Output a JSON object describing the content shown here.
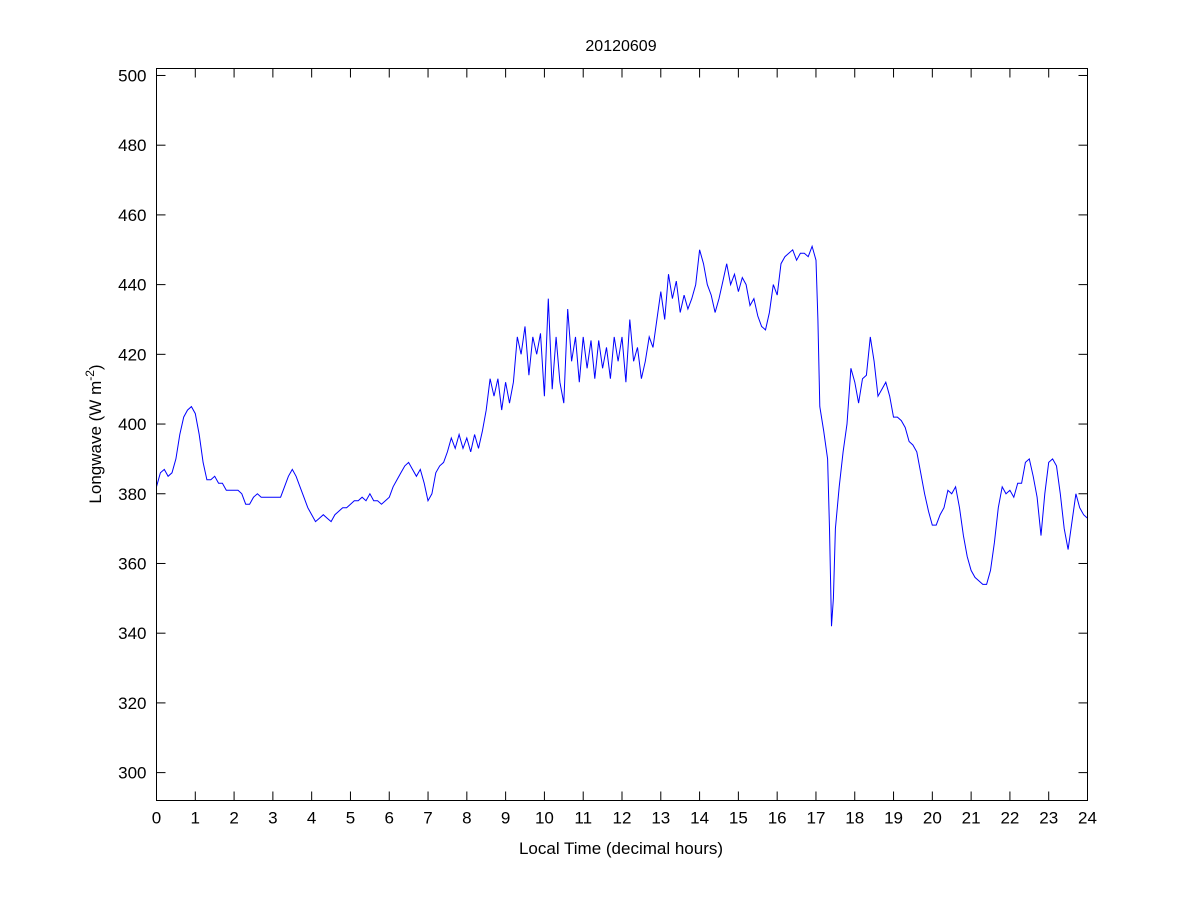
{
  "chart_data": {
    "type": "line",
    "title": "20120609",
    "xlabel": "Local Time (decimal hours)",
    "ylabel_main": "Longwave (W m",
    "ylabel_sup": "-2",
    "ylabel_end": ")",
    "xlim": [
      0,
      24
    ],
    "ylim": [
      292,
      502
    ],
    "xticks": [
      0,
      1,
      2,
      3,
      4,
      5,
      6,
      7,
      8,
      9,
      10,
      11,
      12,
      13,
      14,
      15,
      16,
      17,
      18,
      19,
      20,
      21,
      22,
      23,
      24
    ],
    "yticks": [
      300,
      320,
      340,
      360,
      380,
      400,
      420,
      440,
      460,
      480,
      500
    ],
    "grid": false,
    "line_color": "#0000ff",
    "series": [
      {
        "name": "Longwave",
        "x": [
          0,
          0.1,
          0.2,
          0.3,
          0.4,
          0.5,
          0.6,
          0.7,
          0.8,
          0.9,
          1,
          1.1,
          1.2,
          1.3,
          1.4,
          1.5,
          1.6,
          1.7,
          1.8,
          1.9,
          2,
          2.1,
          2.2,
          2.3,
          2.4,
          2.5,
          2.6,
          2.7,
          2.8,
          2.9,
          3,
          3.1,
          3.2,
          3.3,
          3.4,
          3.5,
          3.6,
          3.7,
          3.8,
          3.9,
          4,
          4.1,
          4.2,
          4.3,
          4.4,
          4.5,
          4.6,
          4.7,
          4.8,
          4.9,
          5,
          5.1,
          5.2,
          5.3,
          5.4,
          5.5,
          5.6,
          5.7,
          5.8,
          5.9,
          6,
          6.1,
          6.2,
          6.3,
          6.4,
          6.5,
          6.6,
          6.7,
          6.8,
          6.9,
          7,
          7.1,
          7.2,
          7.3,
          7.4,
          7.5,
          7.6,
          7.7,
          7.8,
          7.9,
          8,
          8.1,
          8.2,
          8.3,
          8.4,
          8.5,
          8.6,
          8.7,
          8.8,
          8.9,
          9,
          9.1,
          9.2,
          9.3,
          9.4,
          9.5,
          9.6,
          9.7,
          9.8,
          9.9,
          10,
          10.1,
          10.2,
          10.3,
          10.4,
          10.5,
          10.6,
          10.7,
          10.8,
          10.9,
          11,
          11.1,
          11.2,
          11.3,
          11.4,
          11.5,
          11.6,
          11.7,
          11.8,
          11.9,
          12,
          12.1,
          12.2,
          12.3,
          12.4,
          12.5,
          12.6,
          12.7,
          12.8,
          12.9,
          13,
          13.1,
          13.2,
          13.3,
          13.4,
          13.5,
          13.6,
          13.7,
          13.8,
          13.9,
          14,
          14.1,
          14.2,
          14.3,
          14.4,
          14.5,
          14.6,
          14.7,
          14.8,
          14.9,
          15,
          15.1,
          15.2,
          15.3,
          15.4,
          15.5,
          15.6,
          15.7,
          15.8,
          15.9,
          16,
          16.1,
          16.2,
          16.3,
          16.4,
          16.5,
          16.6,
          16.7,
          16.8,
          16.9,
          17,
          17.05,
          17.1,
          17.2,
          17.3,
          17.35,
          17.4,
          17.45,
          17.5,
          17.6,
          17.7,
          17.8,
          17.9,
          18,
          18.1,
          18.2,
          18.3,
          18.4,
          18.5,
          18.6,
          18.7,
          18.8,
          18.9,
          19,
          19.1,
          19.2,
          19.3,
          19.4,
          19.5,
          19.6,
          19.7,
          19.8,
          19.9,
          20,
          20.1,
          20.2,
          20.3,
          20.4,
          20.5,
          20.6,
          20.7,
          20.8,
          20.9,
          21,
          21.1,
          21.2,
          21.3,
          21.4,
          21.5,
          21.6,
          21.7,
          21.8,
          21.9,
          22,
          22.1,
          22.2,
          22.3,
          22.4,
          22.5,
          22.6,
          22.7,
          22.8,
          22.9,
          23,
          23.1,
          23.2,
          23.3,
          23.4,
          23.5,
          23.6,
          23.7,
          23.8,
          23.9,
          24
        ],
        "y": [
          382,
          386,
          387,
          385,
          386,
          390,
          397,
          402,
          404,
          405,
          403,
          397,
          389,
          384,
          384,
          385,
          383,
          383,
          381,
          381,
          381,
          381,
          380,
          377,
          377,
          379,
          380,
          379,
          379,
          379,
          379,
          379,
          379,
          382,
          385,
          387,
          385,
          382,
          379,
          376,
          374,
          372,
          373,
          374,
          373,
          372,
          374,
          375,
          376,
          376,
          377,
          378,
          378,
          379,
          378,
          380,
          378,
          378,
          377,
          378,
          379,
          382,
          384,
          386,
          388,
          389,
          387,
          385,
          387,
          383,
          378,
          380,
          386,
          388,
          389,
          392,
          396,
          393,
          397,
          393,
          396,
          392,
          397,
          393,
          398,
          404,
          413,
          408,
          413,
          404,
          412,
          406,
          412,
          425,
          420,
          428,
          414,
          425,
          420,
          426,
          408,
          436,
          410,
          425,
          412,
          406,
          433,
          418,
          425,
          412,
          425,
          416,
          424,
          413,
          424,
          416,
          422,
          413,
          425,
          418,
          425,
          412,
          430,
          418,
          422,
          413,
          418,
          425,
          422,
          430,
          438,
          430,
          443,
          436,
          441,
          432,
          437,
          433,
          436,
          440,
          450,
          446,
          440,
          437,
          432,
          436,
          441,
          446,
          440,
          443,
          438,
          442,
          440,
          434,
          436,
          431,
          428,
          427,
          432,
          440,
          437,
          446,
          448,
          449,
          450,
          447,
          449,
          449,
          448,
          451,
          447,
          430,
          405,
          398,
          390,
          370,
          342,
          350,
          370,
          382,
          392,
          400,
          416,
          412,
          406,
          413,
          414,
          425,
          418,
          408,
          410,
          412,
          408,
          402,
          402,
          401,
          399,
          395,
          394,
          392,
          386,
          380,
          375,
          371,
          371,
          374,
          376,
          381,
          380,
          382,
          376,
          368,
          362,
          358,
          356,
          355,
          354,
          354,
          358,
          366,
          376,
          382,
          380,
          381,
          379,
          383,
          383,
          389,
          390,
          385,
          379,
          368,
          380,
          389,
          390,
          388,
          380,
          370,
          364,
          372,
          380,
          376,
          374,
          373
        ]
      }
    ]
  }
}
